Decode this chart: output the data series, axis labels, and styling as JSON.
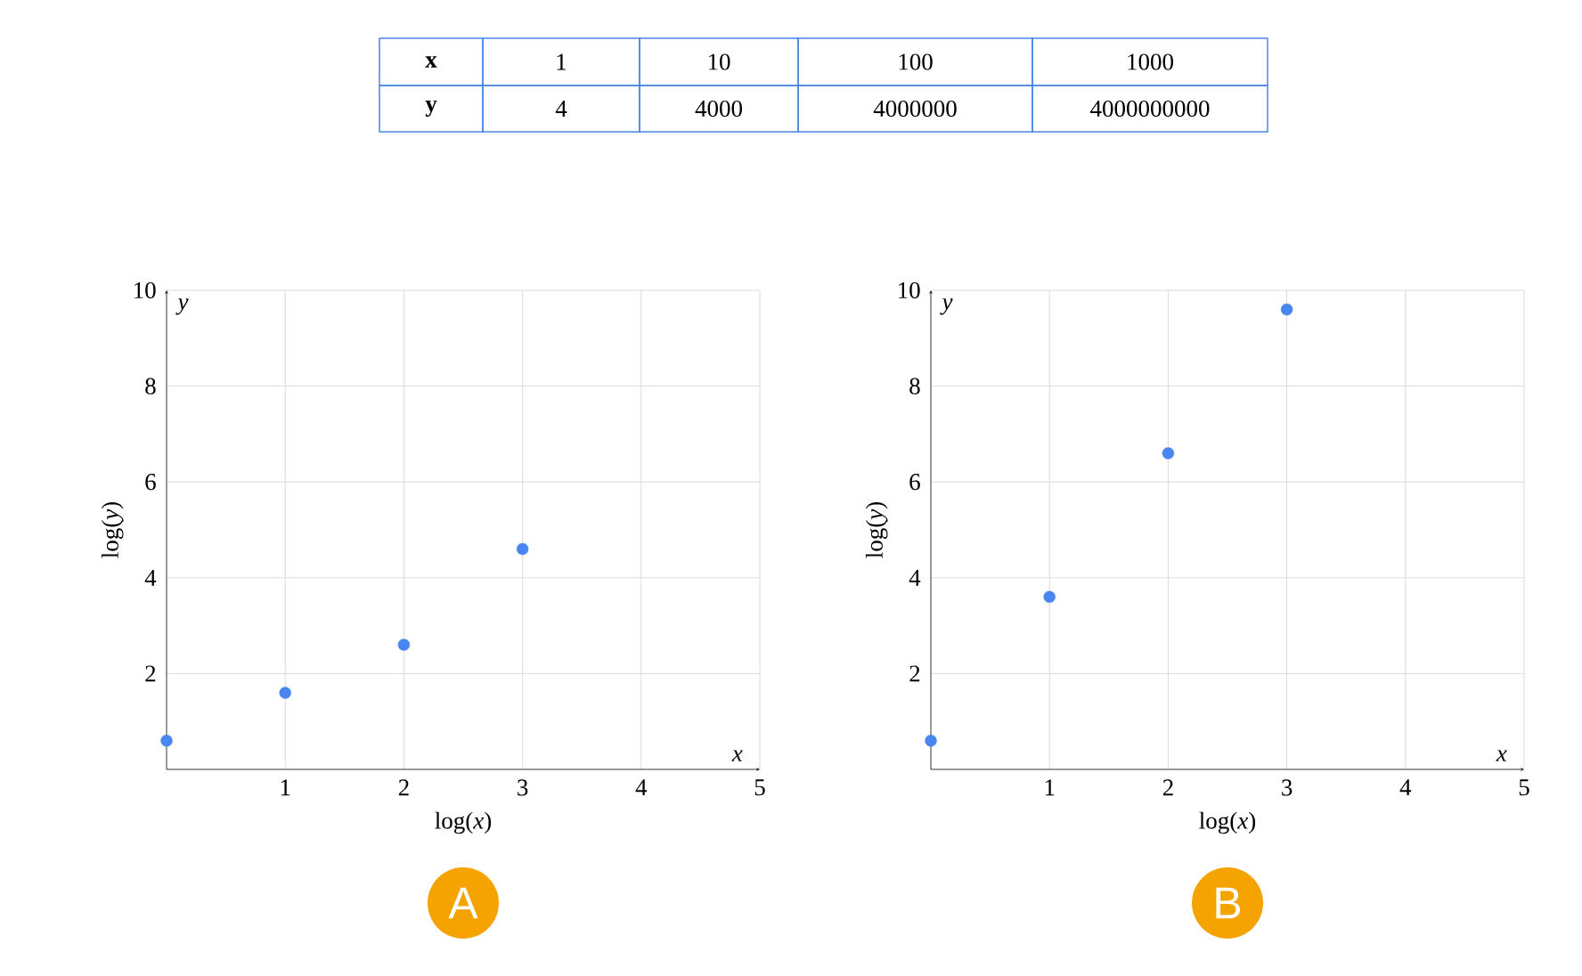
{
  "chart_data": [
    {
      "type": "other",
      "color": "#4a86e8",
      "annotations": [
        "x",
        "1",
        "10",
        "100",
        "1000",
        "y",
        "4",
        "4000",
        "4000000",
        "4000000000"
      ]
    },
    {
      "type": "scatter",
      "title": "A",
      "xlabel": "log(*x*)",
      "ylabel": "log(*y*)",
      "annotations": [
        "x",
        "y"
      ],
      "color": "#4a86f0",
      "marker": "circle",
      "grid": true,
      "x": [
        0,
        1,
        2,
        3
      ],
      "values": [
        0.6,
        1.6,
        2.6,
        4.6
      ],
      "xlim": [
        0,
        5
      ],
      "ylim": [
        0,
        10
      ],
      "xticks": [
        1,
        2,
        3,
        4,
        5
      ],
      "yticks": [
        2,
        4,
        6,
        8,
        10
      ]
    },
    {
      "type": "scatter",
      "title": "B",
      "xlabel": "log(*x*)",
      "ylabel": "log(*y*)",
      "annotations": [
        "x",
        "y"
      ],
      "color": "#4a86f0",
      "marker": "circle",
      "grid": true,
      "x": [
        0,
        1,
        2,
        3
      ],
      "values": [
        0.6,
        3.6,
        6.6,
        9.6
      ],
      "xlim": [
        0,
        5
      ],
      "ylim": [
        0,
        10
      ],
      "xticks": [
        1,
        2,
        3,
        4,
        5
      ],
      "yticks": [
        2,
        4,
        6,
        8,
        10
      ]
    }
  ]
}
